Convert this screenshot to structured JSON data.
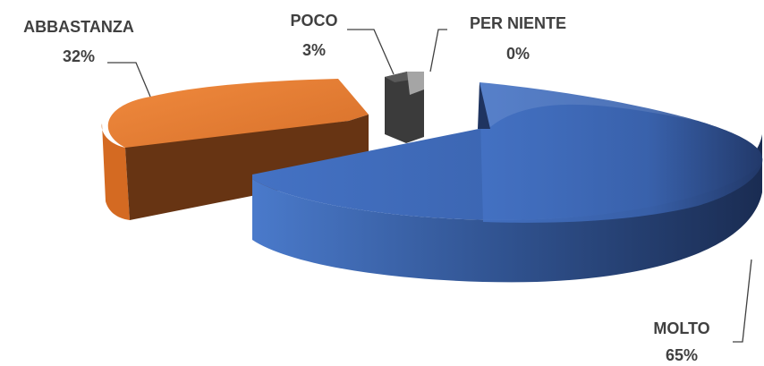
{
  "chart_data": {
    "type": "pie",
    "style": "3d-exploded",
    "slices": [
      {
        "category": "MOLTO",
        "percent_label": "65%",
        "value": 65,
        "color": "#4472C4"
      },
      {
        "category": "ABBASTANZA",
        "percent_label": "32%",
        "value": 32,
        "color": "#ED7D31"
      },
      {
        "category": "POCO",
        "percent_label": "3%",
        "value": 3,
        "color": "#595959"
      },
      {
        "category": "PER NIENTE",
        "percent_label": "0%",
        "value": 0,
        "color": "#A5A5A5"
      }
    ],
    "legend": "none"
  }
}
